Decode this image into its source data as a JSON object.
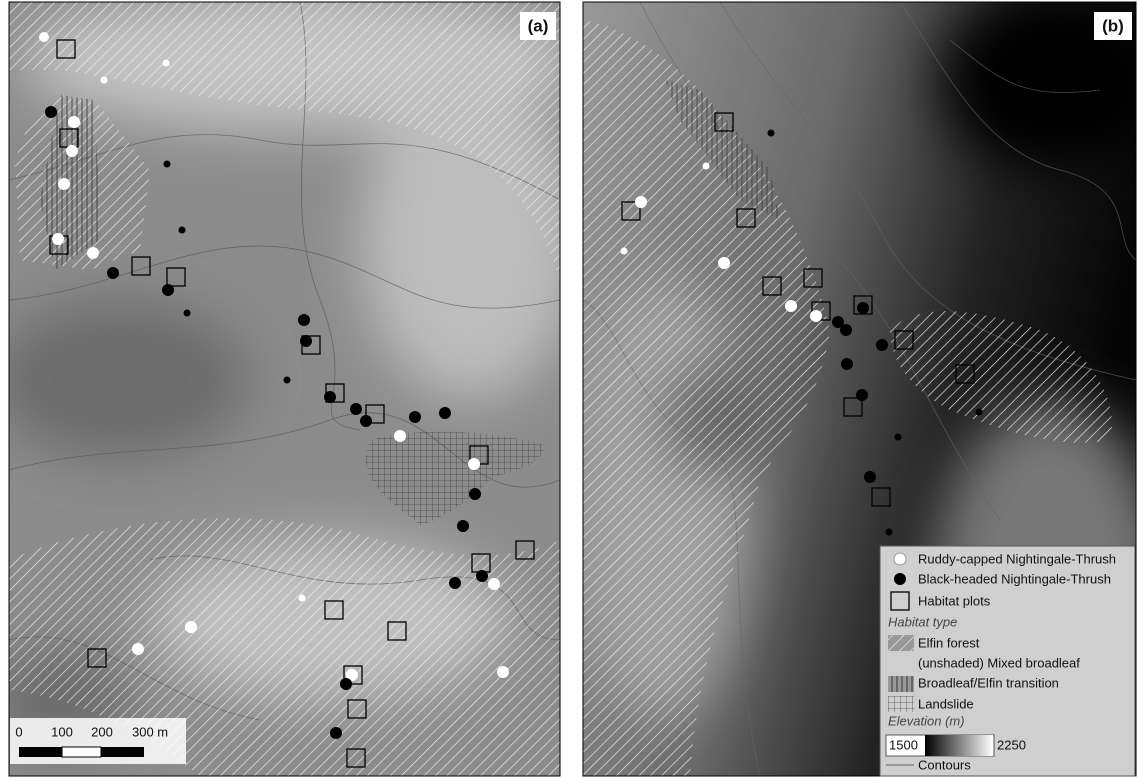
{
  "panels": [
    {
      "label": "(a)"
    },
    {
      "label": "(b)"
    }
  ],
  "scale_bar": {
    "labels": [
      "0",
      "100",
      "200",
      "300 m"
    ]
  },
  "legend": {
    "items": [
      "Ruddy-capped Nightingale-Thrush",
      "Black-headed Nightingale-Thrush",
      "Habitat plots"
    ],
    "habitat_title": "Habitat type",
    "habitat_items": [
      "Elfin forest",
      "(unshaded) Mixed broadleaf",
      "Broadleaf/Elfin transition",
      "Landslide"
    ],
    "elevation_title": "Elevation (m)",
    "elevation_min": "1500",
    "elevation_max": "2250",
    "contours": "Contours"
  }
}
